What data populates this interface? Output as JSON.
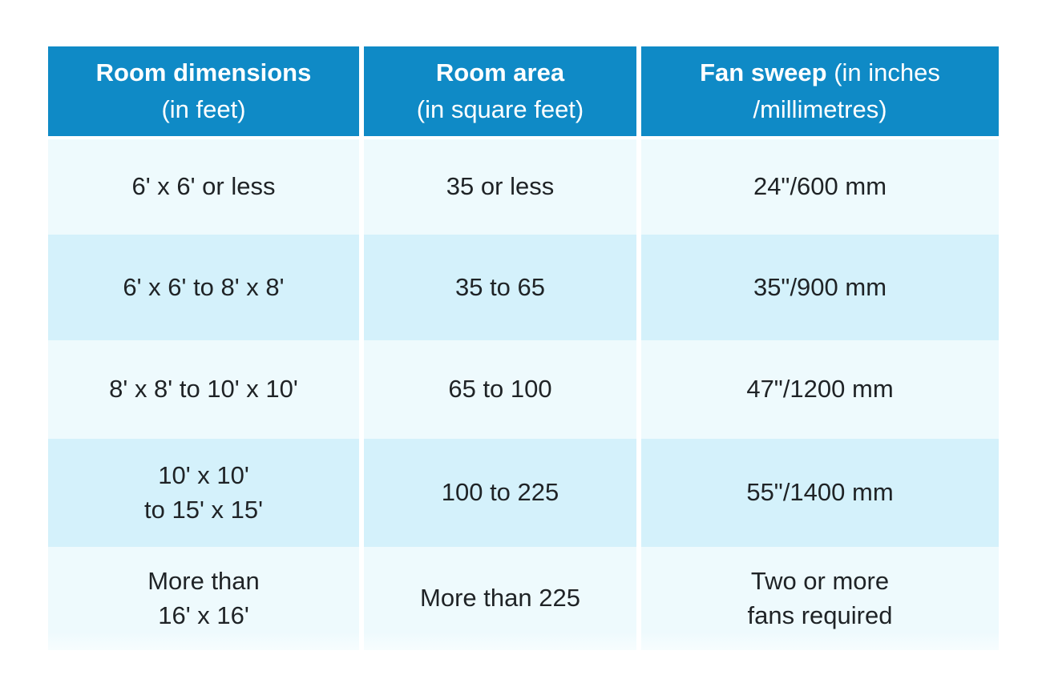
{
  "page": {
    "background": "#ffffff"
  },
  "table": {
    "title": "ceiling-fan-size-guide-table",
    "colors": {
      "header_bg": "#0f8ac6",
      "header_text": "#ffffff",
      "row_light_bg": "#eefafd",
      "row_dark_bg": "#d4f1fb",
      "body_text": "#1f2326",
      "grid_gap": "#ffffff"
    },
    "columns": [
      {
        "bold": "Room dimensions",
        "normal": "(in feet)"
      },
      {
        "bold": "Room area",
        "normal": "(in square feet)"
      },
      {
        "bold": "Fan sweep",
        "normal": "(in inches\n/millimetres)"
      }
    ],
    "rows": [
      {
        "dimensions": "6' x 6' or less",
        "area": "35 or less",
        "sweep": "24\"/600 mm"
      },
      {
        "dimensions": "6' x 6' to 8' x 8'",
        "area": "35 to 65",
        "sweep": "35\"/900 mm"
      },
      {
        "dimensions": "8' x 8' to 10' x 10'",
        "area": "65 to 100",
        "sweep": "47\"/1200 mm"
      },
      {
        "dimensions": "10' x 10'\nto 15' x 15'",
        "area": "100 to 225",
        "sweep": "55\"/1400 mm"
      },
      {
        "dimensions": "More than\n16' x 16'",
        "area": "More than 225",
        "sweep": "Two or more\nfans required"
      }
    ]
  },
  "chart_data": {
    "type": "table",
    "title": "Fan sweep size by room dimensions",
    "columns": [
      "Room dimensions (in feet)",
      "Room area (in square feet)",
      "Fan sweep (in inches /millimetres)"
    ],
    "rows": [
      [
        "6' x 6' or less",
        "35 or less",
        "24\"/600 mm"
      ],
      [
        "6' x 6' to 8' x 8'",
        "35 to 65",
        "35\"/900 mm"
      ],
      [
        "8' x 8' to 10' x 10'",
        "65 to 100",
        "47\"/1200 mm"
      ],
      [
        "10' x 10' to 15' x 15'",
        "100 to 225",
        "55\"/1400 mm"
      ],
      [
        "More than 16' x 16'",
        "More than 225",
        "Two or more fans required"
      ]
    ]
  }
}
